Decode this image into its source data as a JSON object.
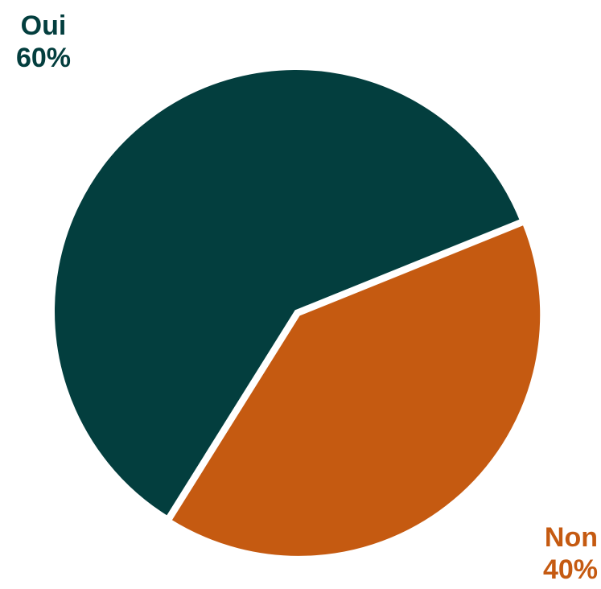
{
  "chart_data": {
    "type": "pie",
    "slices": [
      {
        "name": "Oui",
        "value": 60,
        "percent_label": "60%",
        "color": "#033e3e"
      },
      {
        "name": "Non",
        "value": 40,
        "percent_label": "40%",
        "color": "#c55a11"
      }
    ]
  }
}
